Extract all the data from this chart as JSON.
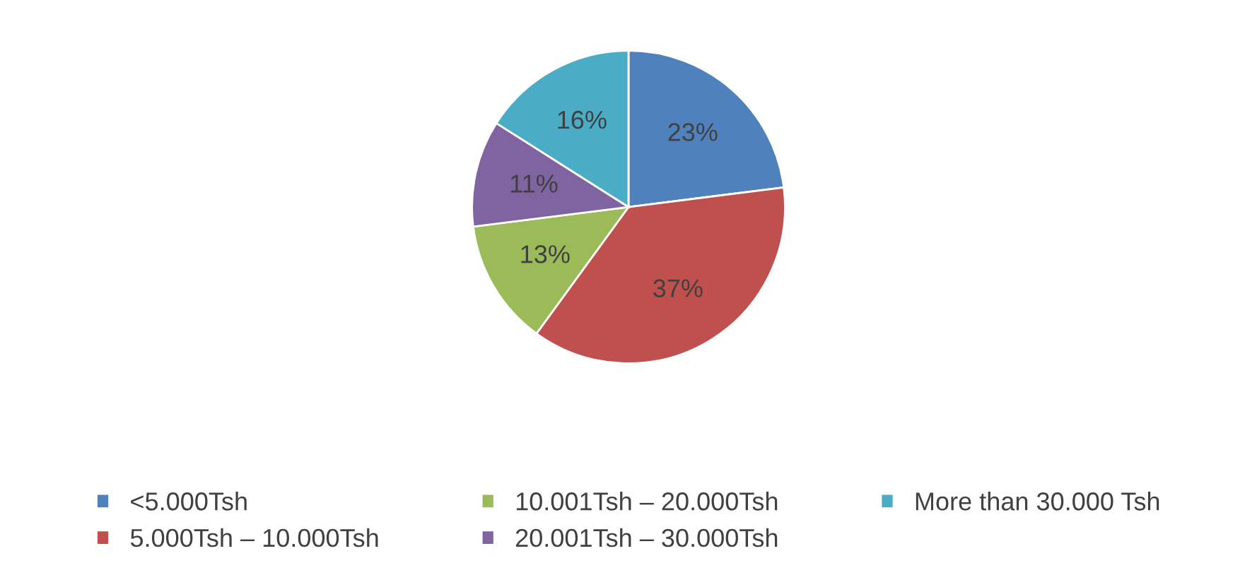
{
  "chart_data": {
    "type": "pie",
    "categories": [
      "<5.000Tsh",
      "5.000Tsh – 10.000Tsh",
      "10.001Tsh – 20.000Tsh",
      "20.001Tsh – 30.000Tsh",
      "More than 30.000 Tsh"
    ],
    "values": [
      23,
      37,
      13,
      11,
      16
    ],
    "colors": [
      "#4f81bd",
      "#c0504d",
      "#9bbb59",
      "#8064a2",
      "#4bacc6"
    ],
    "value_labels": [
      "23%",
      "37%",
      "13%",
      "11%",
      "16%"
    ],
    "legend": "bottom"
  }
}
